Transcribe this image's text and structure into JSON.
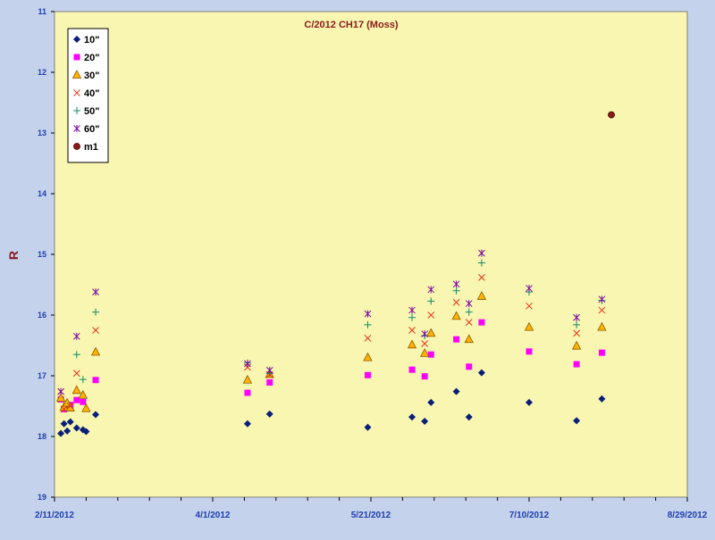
{
  "colors": {
    "background": "#c4d2ec",
    "plot_area": "#f8f6b0",
    "title": "#8b1a1a",
    "axis_text": "#1f3fb0",
    "ylabel": "#8b1a1a"
  },
  "chart_data": {
    "type": "scatter",
    "title": "C/2012 CH17 (Moss)",
    "xlabel": "",
    "ylabel": "R",
    "x_axis": {
      "type": "date",
      "min": "2012-02-11",
      "max": "2012-08-29",
      "labeled_ticks": [
        "2/11/2012",
        "4/1/2012",
        "5/21/2012",
        "7/10/2012",
        "8/29/2012"
      ]
    },
    "y_axis": {
      "reversed": true,
      "min": 11,
      "max": 19,
      "ticks": [
        "11",
        "12",
        "13",
        "14",
        "15",
        "16",
        "17",
        "18",
        "19"
      ]
    },
    "grid": false,
    "legend_position": "top-left",
    "series": [
      {
        "name": "10\"",
        "marker": "diamond",
        "color": "#0a1e7a",
        "points": [
          [
            "2012-02-13",
            17.95
          ],
          [
            "2012-02-14",
            17.79
          ],
          [
            "2012-02-15",
            17.91
          ],
          [
            "2012-02-16",
            17.76
          ],
          [
            "2012-02-18",
            17.86
          ],
          [
            "2012-02-20",
            17.89
          ],
          [
            "2012-02-21",
            17.92
          ],
          [
            "2012-02-24",
            17.64
          ],
          [
            "2012-04-12",
            17.79
          ],
          [
            "2012-04-19",
            17.63
          ],
          [
            "2012-05-20",
            17.85
          ],
          [
            "2012-06-03",
            17.68
          ],
          [
            "2012-06-07",
            17.75
          ],
          [
            "2012-06-09",
            17.44
          ],
          [
            "2012-06-17",
            17.26
          ],
          [
            "2012-06-21",
            17.68
          ],
          [
            "2012-06-25",
            16.95
          ],
          [
            "2012-07-10",
            17.44
          ],
          [
            "2012-07-25",
            17.74
          ],
          [
            "2012-08-02",
            17.38
          ]
        ]
      },
      {
        "name": "20\"",
        "marker": "square",
        "color": "#ff00ff",
        "points": [
          [
            "2012-02-13",
            17.39
          ],
          [
            "2012-02-14",
            17.55
          ],
          [
            "2012-02-15",
            17.51
          ],
          [
            "2012-02-16",
            17.48
          ],
          [
            "2012-02-18",
            17.4
          ],
          [
            "2012-02-20",
            17.43
          ],
          [
            "2012-02-24",
            17.07
          ],
          [
            "2012-04-12",
            17.28
          ],
          [
            "2012-04-19",
            17.11
          ],
          [
            "2012-05-20",
            16.99
          ],
          [
            "2012-06-03",
            16.9
          ],
          [
            "2012-06-07",
            17.01
          ],
          [
            "2012-06-09",
            16.65
          ],
          [
            "2012-06-17",
            16.4
          ],
          [
            "2012-06-21",
            16.85
          ],
          [
            "2012-06-25",
            16.12
          ],
          [
            "2012-07-10",
            16.6
          ],
          [
            "2012-07-25",
            16.81
          ],
          [
            "2012-08-02",
            16.62
          ]
        ]
      },
      {
        "name": "30\"",
        "marker": "triangle",
        "color": "#ffb300",
        "points": [
          [
            "2012-02-13",
            17.37
          ],
          [
            "2012-02-14",
            17.52
          ],
          [
            "2012-02-15",
            17.45
          ],
          [
            "2012-02-16",
            17.53
          ],
          [
            "2012-02-18",
            17.24
          ],
          [
            "2012-02-20",
            17.32
          ],
          [
            "2012-02-21",
            17.54
          ],
          [
            "2012-02-24",
            16.61
          ],
          [
            "2012-04-12",
            17.07
          ],
          [
            "2012-04-19",
            16.98
          ],
          [
            "2012-05-20",
            16.7
          ],
          [
            "2012-06-03",
            16.49
          ],
          [
            "2012-06-07",
            16.63
          ],
          [
            "2012-06-09",
            16.3
          ],
          [
            "2012-06-17",
            16.02
          ],
          [
            "2012-06-21",
            16.4
          ],
          [
            "2012-06-25",
            15.69
          ],
          [
            "2012-07-10",
            16.2
          ],
          [
            "2012-07-25",
            16.51
          ],
          [
            "2012-08-02",
            16.2
          ]
        ]
      },
      {
        "name": "40\"",
        "marker": "x",
        "color": "#e8341c",
        "points": [
          [
            "2012-02-13",
            17.26
          ],
          [
            "2012-02-14",
            17.55
          ],
          [
            "2012-02-16",
            17.5
          ],
          [
            "2012-02-18",
            16.96
          ],
          [
            "2012-02-24",
            16.25
          ],
          [
            "2012-04-12",
            16.86
          ],
          [
            "2012-04-19",
            16.98
          ],
          [
            "2012-05-20",
            16.38
          ],
          [
            "2012-06-03",
            16.25
          ],
          [
            "2012-06-07",
            16.47
          ],
          [
            "2012-06-09",
            16.0
          ],
          [
            "2012-06-17",
            15.79
          ],
          [
            "2012-06-21",
            16.12
          ],
          [
            "2012-06-25",
            15.38
          ],
          [
            "2012-07-10",
            15.85
          ],
          [
            "2012-07-25",
            16.3
          ],
          [
            "2012-08-02",
            15.92
          ]
        ]
      },
      {
        "name": "50\"",
        "marker": "plus",
        "color": "#128a6a",
        "points": [
          [
            "2012-02-18",
            16.65
          ],
          [
            "2012-02-20",
            17.06
          ],
          [
            "2012-02-24",
            15.95
          ],
          [
            "2012-04-12",
            16.79
          ],
          [
            "2012-04-19",
            16.96
          ],
          [
            "2012-05-20",
            16.16
          ],
          [
            "2012-06-03",
            16.04
          ],
          [
            "2012-06-07",
            16.34
          ],
          [
            "2012-06-09",
            15.77
          ],
          [
            "2012-06-17",
            15.6
          ],
          [
            "2012-06-21",
            15.95
          ],
          [
            "2012-06-25",
            15.14
          ],
          [
            "2012-07-10",
            15.62
          ],
          [
            "2012-07-25",
            16.16
          ],
          [
            "2012-08-02",
            15.76
          ]
        ]
      },
      {
        "name": "60\"",
        "marker": "star",
        "color": "#7a0aa0",
        "points": [
          [
            "2012-02-13",
            17.26
          ],
          [
            "2012-02-18",
            16.35
          ],
          [
            "2012-02-24",
            15.62
          ],
          [
            "2012-04-12",
            16.8
          ],
          [
            "2012-04-19",
            16.91
          ],
          [
            "2012-05-20",
            15.98
          ],
          [
            "2012-06-03",
            15.92
          ],
          [
            "2012-06-07",
            16.31
          ],
          [
            "2012-06-09",
            15.58
          ],
          [
            "2012-06-17",
            15.49
          ],
          [
            "2012-06-21",
            15.81
          ],
          [
            "2012-06-25",
            14.98
          ],
          [
            "2012-07-10",
            15.56
          ],
          [
            "2012-07-25",
            16.04
          ],
          [
            "2012-08-02",
            15.74
          ]
        ]
      },
      {
        "name": "m1",
        "marker": "circle",
        "color": "#8b1a1a",
        "points": [
          [
            "2012-08-05",
            12.7
          ]
        ]
      }
    ]
  }
}
